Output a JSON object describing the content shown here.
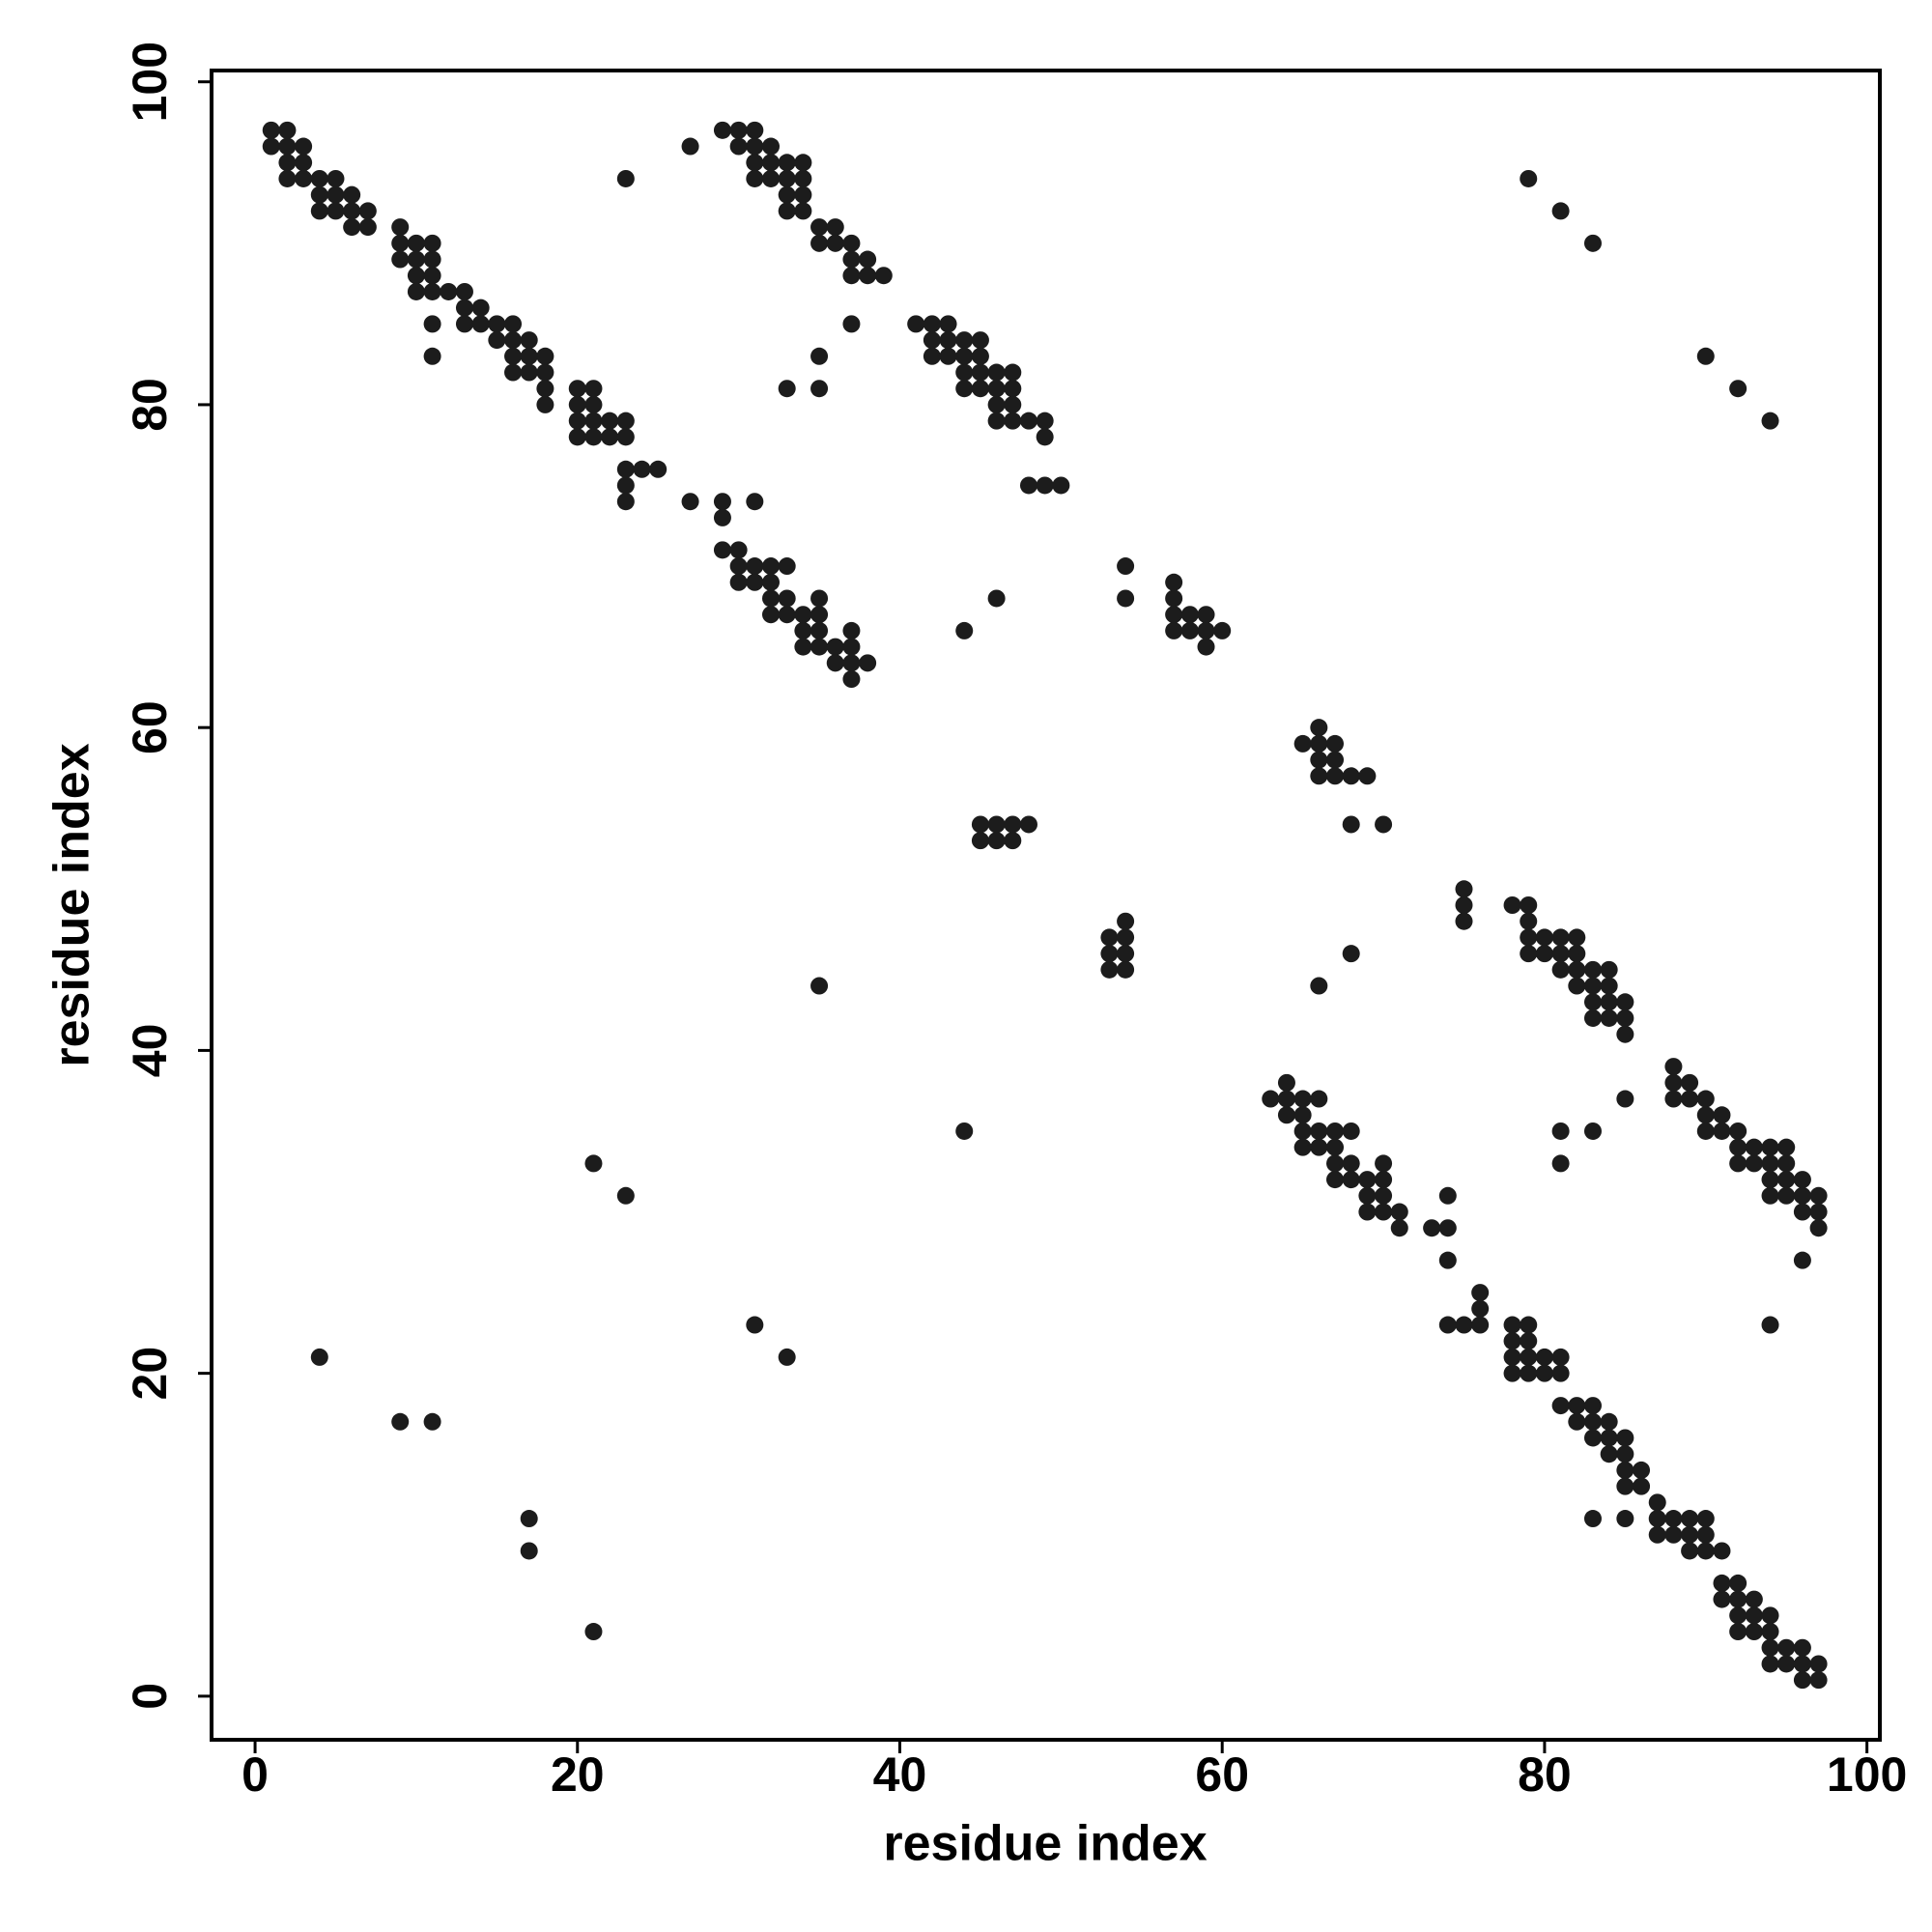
{
  "chart_data": {
    "type": "scatter",
    "xlabel": "residue index",
    "ylabel": "residue index",
    "xlim": [
      -2.7,
      100.8
    ],
    "ylim": [
      -2.7,
      100.7
    ],
    "xticks": [
      0,
      20,
      40,
      60,
      80,
      100
    ],
    "yticks": [
      0,
      20,
      40,
      60,
      80,
      100
    ],
    "color": "#1c1c1c",
    "x": [
      1,
      2,
      1,
      2,
      3,
      2,
      3,
      2,
      3,
      4,
      4,
      5,
      5,
      4,
      5,
      6,
      6,
      6,
      7,
      7,
      9,
      9,
      9,
      10,
      10,
      10,
      10,
      11,
      11,
      11,
      11,
      12,
      13,
      13,
      13,
      14,
      14,
      11,
      11,
      15,
      15,
      16,
      16,
      16,
      16,
      17,
      17,
      17,
      18,
      18,
      18,
      18,
      20,
      20,
      20,
      20,
      21,
      21,
      21,
      21,
      22,
      22,
      23,
      23,
      23,
      23,
      23,
      24,
      25,
      23,
      27,
      27,
      29,
      30,
      30,
      31,
      31,
      31,
      31,
      32,
      32,
      32,
      33,
      33,
      33,
      33,
      34,
      34,
      34,
      34,
      35,
      35,
      36,
      36,
      37,
      37,
      37,
      38,
      38,
      39,
      37,
      35,
      33,
      35,
      41,
      42,
      42,
      42,
      43,
      43,
      43,
      44,
      44,
      44,
      44,
      45,
      45,
      45,
      45,
      46,
      46,
      46,
      46,
      47,
      47,
      47,
      47,
      48,
      49,
      49,
      48,
      49,
      50,
      29,
      29,
      31,
      29,
      30,
      30,
      30,
      31,
      31,
      32,
      32,
      32,
      32,
      33,
      33,
      33,
      34,
      34,
      34,
      35,
      35,
      35,
      35,
      36,
      37,
      37,
      37,
      37,
      36,
      38,
      44,
      46,
      54,
      54,
      57,
      57,
      57,
      57,
      58,
      58,
      59,
      59,
      59,
      60,
      65,
      66,
      66,
      66,
      66,
      67,
      67,
      67,
      68,
      69,
      68,
      70,
      45,
      45,
      46,
      46,
      47,
      47,
      48,
      53,
      53,
      53,
      54,
      54,
      54,
      54,
      35,
      66,
      68,
      75,
      75,
      75,
      78,
      79,
      79,
      79,
      79,
      80,
      80,
      81,
      81,
      81,
      82,
      82,
      82,
      82,
      83,
      83,
      83,
      84,
      84,
      84,
      84,
      85,
      85,
      85,
      83,
      88,
      88,
      88,
      89,
      89,
      90,
      90,
      90,
      91,
      91,
      92,
      92,
      92,
      93,
      93,
      94,
      94,
      94,
      94,
      95,
      95,
      95,
      95,
      96,
      96,
      96,
      97,
      97,
      97,
      96,
      94,
      85,
      81,
      81,
      83,
      63,
      64,
      64,
      64,
      65,
      65,
      65,
      65,
      66,
      66,
      66,
      67,
      67,
      67,
      67,
      68,
      68,
      68,
      69,
      69,
      69,
      70,
      70,
      70,
      70,
      71,
      71,
      73,
      74,
      74,
      74,
      74,
      75,
      76,
      76,
      76,
      78,
      78,
      78,
      78,
      79,
      79,
      79,
      79,
      80,
      80,
      81,
      81,
      81,
      82,
      82,
      83,
      83,
      83,
      84,
      84,
      84,
      85,
      85,
      85,
      85,
      86,
      86,
      87,
      87,
      87,
      88,
      88,
      89,
      89,
      89,
      90,
      90,
      90,
      91,
      91,
      91,
      92,
      92,
      92,
      92,
      93,
      93,
      93,
      94,
      94,
      94,
      94,
      95,
      95,
      96,
      96,
      96,
      97,
      97,
      83,
      85,
      79,
      81,
      83,
      90,
      92,
      94,
      44,
      21,
      23,
      31,
      33,
      4,
      9,
      11,
      17,
      17,
      21
    ],
    "y": [
      97,
      97,
      96,
      96,
      96,
      95,
      95,
      94,
      94,
      94,
      93,
      93,
      94,
      92,
      92,
      93,
      92,
      91,
      92,
      91,
      91,
      90,
      89,
      90,
      89,
      88,
      87,
      90,
      89,
      88,
      87,
      87,
      87,
      86,
      85,
      86,
      85,
      85,
      83,
      85,
      84,
      85,
      84,
      83,
      82,
      84,
      83,
      82,
      83,
      82,
      81,
      80,
      81,
      80,
      79,
      78,
      81,
      80,
      79,
      78,
      79,
      78,
      79,
      78,
      76,
      75,
      74,
      76,
      76,
      94,
      74,
      96,
      97,
      97,
      96,
      97,
      96,
      95,
      94,
      96,
      95,
      94,
      95,
      94,
      93,
      92,
      95,
      94,
      93,
      92,
      91,
      90,
      91,
      90,
      90,
      89,
      88,
      89,
      88,
      88,
      85,
      83,
      81,
      81,
      85,
      85,
      84,
      83,
      85,
      84,
      83,
      84,
      83,
      82,
      81,
      84,
      83,
      82,
      81,
      82,
      81,
      80,
      79,
      82,
      81,
      80,
      79,
      79,
      79,
      78,
      75,
      75,
      75,
      74,
      73,
      74,
      71,
      71,
      70,
      69,
      70,
      69,
      70,
      69,
      68,
      67,
      70,
      68,
      67,
      67,
      66,
      65,
      68,
      67,
      66,
      65,
      65,
      66,
      65,
      64,
      63,
      64,
      64,
      66,
      68,
      70,
      68,
      69,
      68,
      67,
      66,
      67,
      66,
      67,
      66,
      65,
      66,
      59,
      60,
      59,
      58,
      57,
      59,
      58,
      57,
      57,
      57,
      54,
      54,
      54,
      53,
      54,
      53,
      54,
      53,
      54,
      47,
      46,
      45,
      48,
      47,
      46,
      45,
      44,
      44,
      46,
      50,
      49,
      48,
      49,
      49,
      48,
      47,
      46,
      47,
      46,
      47,
      46,
      45,
      47,
      46,
      45,
      44,
      45,
      44,
      43,
      45,
      44,
      43,
      42,
      43,
      42,
      41,
      42,
      39,
      38,
      37,
      38,
      37,
      37,
      36,
      35,
      36,
      35,
      35,
      34,
      33,
      34,
      33,
      34,
      33,
      32,
      31,
      34,
      33,
      32,
      31,
      32,
      31,
      30,
      31,
      30,
      29,
      27,
      23,
      37,
      35,
      33,
      35,
      37,
      38,
      37,
      36,
      37,
      36,
      35,
      34,
      37,
      35,
      34,
      35,
      34,
      33,
      32,
      35,
      33,
      32,
      32,
      31,
      30,
      33,
      32,
      31,
      30,
      30,
      29,
      29,
      31,
      29,
      27,
      23,
      23,
      25,
      24,
      23,
      23,
      22,
      21,
      20,
      23,
      22,
      21,
      20,
      21,
      20,
      21,
      20,
      18,
      18,
      17,
      18,
      17,
      16,
      17,
      16,
      15,
      16,
      15,
      14,
      13,
      14,
      13,
      12,
      11,
      10,
      11,
      10,
      11,
      10,
      9,
      11,
      10,
      9,
      9,
      7,
      6,
      7,
      6,
      5,
      4,
      6,
      5,
      4,
      5,
      4,
      3,
      2,
      3,
      2,
      3,
      2,
      1,
      2,
      1,
      11,
      11,
      94,
      92,
      90,
      83,
      81,
      79,
      35,
      33,
      31,
      23,
      21,
      21,
      17,
      17,
      11,
      9,
      4
    ]
  }
}
